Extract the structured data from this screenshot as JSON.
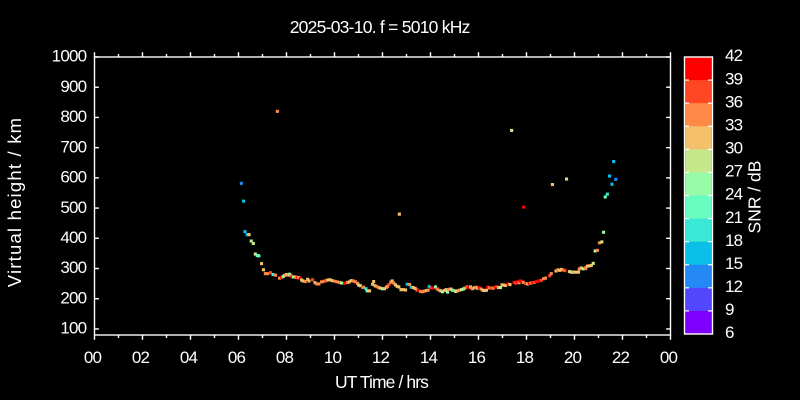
{
  "title": "2025-03-10. f = 5010 kHz",
  "axes": {
    "x": {
      "label": "UT Time / hrs",
      "tick_labels": [
        "00",
        "02",
        "04",
        "06",
        "08",
        "10",
        "12",
        "14",
        "16",
        "18",
        "20",
        "22",
        "00"
      ],
      "range_hours": [
        0,
        24
      ]
    },
    "y": {
      "label": "Virtual height / km",
      "tick_labels": [
        "1000",
        "900",
        "800",
        "700",
        "600",
        "500",
        "400",
        "300",
        "200",
        "100"
      ],
      "tick_values": [
        1000,
        900,
        800,
        700,
        600,
        500,
        400,
        300,
        200,
        100
      ],
      "range_km": [
        80,
        1000
      ]
    }
  },
  "colorbar": {
    "label": "SNR / dB",
    "tick_labels": [
      "42",
      "39",
      "36",
      "33",
      "30",
      "27",
      "24",
      "21",
      "18",
      "15",
      "12",
      "9",
      "6"
    ],
    "tick_values": [
      42,
      39,
      36,
      33,
      30,
      27,
      24,
      21,
      18,
      15,
      12,
      9,
      6
    ],
    "block_colors_top_to_bottom": [
      "#FF0000",
      "#FF4724",
      "#FF8947",
      "#F4C069",
      "#C4E88A",
      "#96FCA7",
      "#68FCC1",
      "#3AE8D6",
      "#0AC0E8",
      "#2489F5",
      "#5247FC",
      "#8000FF"
    ],
    "range_db": [
      6,
      42
    ]
  },
  "colors": {
    "background": "#000000",
    "axis": "#ffffff",
    "text": "#ffffff"
  },
  "chart_data": {
    "type": "scatter",
    "title": "2025-03-10. f = 5010 kHz",
    "xlabel": "UT Time / hrs",
    "ylabel": "Virtual height / km",
    "xlim": [
      0,
      24
    ],
    "ylim": [
      80,
      1000
    ],
    "grid": false,
    "marker": "square-3px",
    "color_scale": {
      "label": "SNR / dB",
      "min": 6,
      "max": 42,
      "step": 3,
      "colors_low_to_high": [
        "#8000FF",
        "#5247FC",
        "#2489F5",
        "#0AC0E8",
        "#3AE8D6",
        "#68FCC1",
        "#96FCA7",
        "#C4E88A",
        "#F4C069",
        "#FF8947",
        "#FF4724",
        "#FF0000"
      ]
    },
    "points_t_h_snr": [
      [
        6.12,
        582,
        13
      ],
      [
        6.21,
        523,
        16
      ],
      [
        6.27,
        422,
        16
      ],
      [
        6.36,
        412,
        16
      ],
      [
        6.44,
        412,
        31
      ],
      [
        6.53,
        391,
        28
      ],
      [
        6.62,
        383,
        28
      ],
      [
        6.7,
        348,
        28
      ],
      [
        6.78,
        343,
        22
      ],
      [
        6.85,
        342,
        22
      ],
      [
        6.96,
        316,
        31
      ],
      [
        7.04,
        296,
        31
      ],
      [
        7.12,
        283,
        34
      ],
      [
        7.22,
        283,
        34
      ],
      [
        7.33,
        286,
        37
      ],
      [
        7.44,
        280,
        19
      ],
      [
        7.54,
        278,
        34
      ],
      [
        7.62,
        820,
        34
      ],
      [
        7.71,
        268,
        34
      ],
      [
        7.8,
        271,
        40
      ],
      [
        7.86,
        273,
        25
      ],
      [
        7.91,
        277,
        31
      ],
      [
        7.98,
        279,
        34
      ],
      [
        8.02,
        280,
        31
      ],
      [
        8.09,
        278,
        34
      ],
      [
        8.13,
        281,
        25
      ],
      [
        8.18,
        277,
        34
      ],
      [
        8.23,
        272,
        40
      ],
      [
        8.29,
        272,
        25
      ],
      [
        8.35,
        272,
        31
      ],
      [
        8.4,
        271,
        34
      ],
      [
        8.47,
        269,
        40
      ],
      [
        8.51,
        270,
        31
      ],
      [
        8.57,
        268,
        40
      ],
      [
        8.63,
        262,
        31
      ],
      [
        8.69,
        259,
        31
      ],
      [
        8.78,
        257,
        34
      ],
      [
        8.88,
        264,
        31
      ],
      [
        8.94,
        259,
        31
      ],
      [
        9.09,
        263,
        37
      ],
      [
        9.19,
        253,
        31
      ],
      [
        9.27,
        249,
        34
      ],
      [
        9.35,
        249,
        34
      ],
      [
        9.46,
        256,
        34
      ],
      [
        9.57,
        258,
        34
      ],
      [
        9.64,
        260,
        37
      ],
      [
        9.72,
        262,
        31
      ],
      [
        9.81,
        263,
        31
      ],
      [
        9.9,
        260,
        31
      ],
      [
        10.02,
        258,
        34
      ],
      [
        10.11,
        256,
        34
      ],
      [
        10.21,
        254,
        34
      ],
      [
        10.3,
        252,
        25
      ],
      [
        10.43,
        251,
        40
      ],
      [
        10.54,
        254,
        34
      ],
      [
        10.62,
        256,
        31
      ],
      [
        10.7,
        260,
        31
      ],
      [
        10.78,
        259,
        34
      ],
      [
        10.87,
        256,
        34
      ],
      [
        10.96,
        251,
        34
      ],
      [
        11.01,
        245,
        28
      ],
      [
        11.08,
        243,
        31
      ],
      [
        11.17,
        237,
        37
      ],
      [
        11.22,
        238,
        34
      ],
      [
        11.31,
        233,
        19
      ],
      [
        11.36,
        226,
        22
      ],
      [
        11.46,
        226,
        31
      ],
      [
        11.59,
        248,
        31
      ],
      [
        11.63,
        257,
        31
      ],
      [
        11.69,
        243,
        31
      ],
      [
        11.77,
        240,
        34
      ],
      [
        11.84,
        237,
        34
      ],
      [
        11.91,
        235,
        31
      ],
      [
        12.0,
        233,
        25
      ],
      [
        12.08,
        233,
        31
      ],
      [
        12.16,
        238,
        31
      ],
      [
        12.21,
        241,
        34
      ],
      [
        12.27,
        247,
        37
      ],
      [
        12.35,
        255,
        34
      ],
      [
        12.4,
        259,
        31
      ],
      [
        12.47,
        252,
        34
      ],
      [
        12.54,
        246,
        31
      ],
      [
        12.61,
        241,
        31
      ],
      [
        12.68,
        239,
        31
      ],
      [
        12.7,
        480,
        31
      ],
      [
        12.77,
        230,
        31
      ],
      [
        12.87,
        230,
        31
      ],
      [
        12.96,
        229,
        31
      ],
      [
        13.03,
        248,
        16
      ],
      [
        13.13,
        247,
        34
      ],
      [
        13.2,
        238,
        16
      ],
      [
        13.28,
        237,
        31
      ],
      [
        13.36,
        234,
        31
      ],
      [
        13.44,
        229,
        34
      ],
      [
        13.5,
        227,
        40
      ],
      [
        13.59,
        224,
        34
      ],
      [
        13.66,
        223,
        34
      ],
      [
        13.74,
        225,
        34
      ],
      [
        13.83,
        227,
        31
      ],
      [
        13.9,
        228,
        34
      ],
      [
        13.95,
        240,
        16
      ],
      [
        14.04,
        236,
        37
      ],
      [
        14.1,
        235,
        40
      ],
      [
        14.21,
        239,
        25
      ],
      [
        14.28,
        232,
        34
      ],
      [
        14.36,
        228,
        34
      ],
      [
        14.43,
        226,
        31
      ],
      [
        14.5,
        223,
        25
      ],
      [
        14.58,
        227,
        31
      ],
      [
        14.65,
        230,
        31
      ],
      [
        14.71,
        222,
        25
      ],
      [
        14.78,
        231,
        34
      ],
      [
        14.85,
        232,
        31
      ],
      [
        14.92,
        228,
        28
      ],
      [
        14.98,
        227,
        19
      ],
      [
        15.05,
        224,
        28
      ],
      [
        15.12,
        226,
        31
      ],
      [
        15.2,
        228,
        34
      ],
      [
        15.29,
        230,
        28
      ],
      [
        15.36,
        232,
        25
      ],
      [
        15.43,
        235,
        31
      ],
      [
        15.52,
        240,
        37
      ],
      [
        15.6,
        237,
        40
      ],
      [
        15.67,
        239,
        31
      ],
      [
        15.74,
        233,
        34
      ],
      [
        15.82,
        236,
        31
      ],
      [
        15.89,
        238,
        34
      ],
      [
        15.96,
        235,
        31
      ],
      [
        16.03,
        237,
        40
      ],
      [
        16.11,
        232,
        34
      ],
      [
        16.18,
        228,
        31
      ],
      [
        16.25,
        227,
        31
      ],
      [
        16.33,
        228,
        31
      ],
      [
        16.38,
        238,
        40
      ],
      [
        16.46,
        236,
        34
      ],
      [
        16.53,
        235,
        37
      ],
      [
        16.62,
        235,
        34
      ],
      [
        16.7,
        239,
        40
      ],
      [
        16.77,
        239,
        37
      ],
      [
        16.84,
        237,
        31
      ],
      [
        16.92,
        237,
        25
      ],
      [
        16.98,
        246,
        31
      ],
      [
        17.06,
        245,
        31
      ],
      [
        17.13,
        244,
        31
      ],
      [
        17.23,
        249,
        40
      ],
      [
        17.31,
        247,
        31
      ],
      [
        17.38,
        757,
        28
      ],
      [
        17.48,
        254,
        40
      ],
      [
        17.55,
        252,
        37
      ],
      [
        17.62,
        256,
        40
      ],
      [
        17.69,
        253,
        34
      ],
      [
        17.74,
        259,
        40
      ],
      [
        17.8,
        258,
        40
      ],
      [
        17.87,
        254,
        34
      ],
      [
        17.88,
        503,
        40
      ],
      [
        17.97,
        250,
        37
      ],
      [
        18.05,
        249,
        31
      ],
      [
        18.12,
        251,
        40
      ],
      [
        18.19,
        252,
        34
      ],
      [
        18.27,
        254,
        40
      ],
      [
        18.33,
        254,
        37
      ],
      [
        18.42,
        257,
        40
      ],
      [
        18.51,
        259,
        40
      ],
      [
        18.62,
        261,
        37
      ],
      [
        18.71,
        266,
        34
      ],
      [
        18.79,
        268,
        34
      ],
      [
        18.97,
        276,
        37
      ],
      [
        19.03,
        283,
        34
      ],
      [
        19.08,
        578,
        31
      ],
      [
        19.23,
        292,
        31
      ],
      [
        19.31,
        296,
        34
      ],
      [
        19.38,
        294,
        31
      ],
      [
        19.46,
        297,
        31
      ],
      [
        19.53,
        295,
        34
      ],
      [
        19.6,
        293,
        37
      ],
      [
        19.67,
        596,
        28
      ],
      [
        19.79,
        290,
        31
      ],
      [
        19.86,
        288,
        25
      ],
      [
        19.92,
        288,
        31
      ],
      [
        20.0,
        288,
        31
      ],
      [
        20.09,
        288,
        31
      ],
      [
        20.17,
        288,
        31
      ],
      [
        20.2,
        299,
        34
      ],
      [
        20.28,
        302,
        31
      ],
      [
        20.36,
        299,
        25
      ],
      [
        20.46,
        303,
        37
      ],
      [
        20.47,
        300,
        34
      ],
      [
        20.53,
        308,
        31
      ],
      [
        20.61,
        309,
        31
      ],
      [
        20.7,
        310,
        31
      ],
      [
        20.78,
        317,
        28
      ],
      [
        20.86,
        358,
        25
      ],
      [
        20.95,
        360,
        34
      ],
      [
        21.04,
        385,
        34
      ],
      [
        21.14,
        388,
        28
      ],
      [
        21.21,
        420,
        25
      ],
      [
        21.28,
        537,
        22
      ],
      [
        21.37,
        546,
        19
      ],
      [
        21.46,
        606,
        16
      ],
      [
        21.56,
        579,
        16
      ],
      [
        21.63,
        654,
        16
      ],
      [
        21.72,
        595,
        13
      ]
    ]
  }
}
